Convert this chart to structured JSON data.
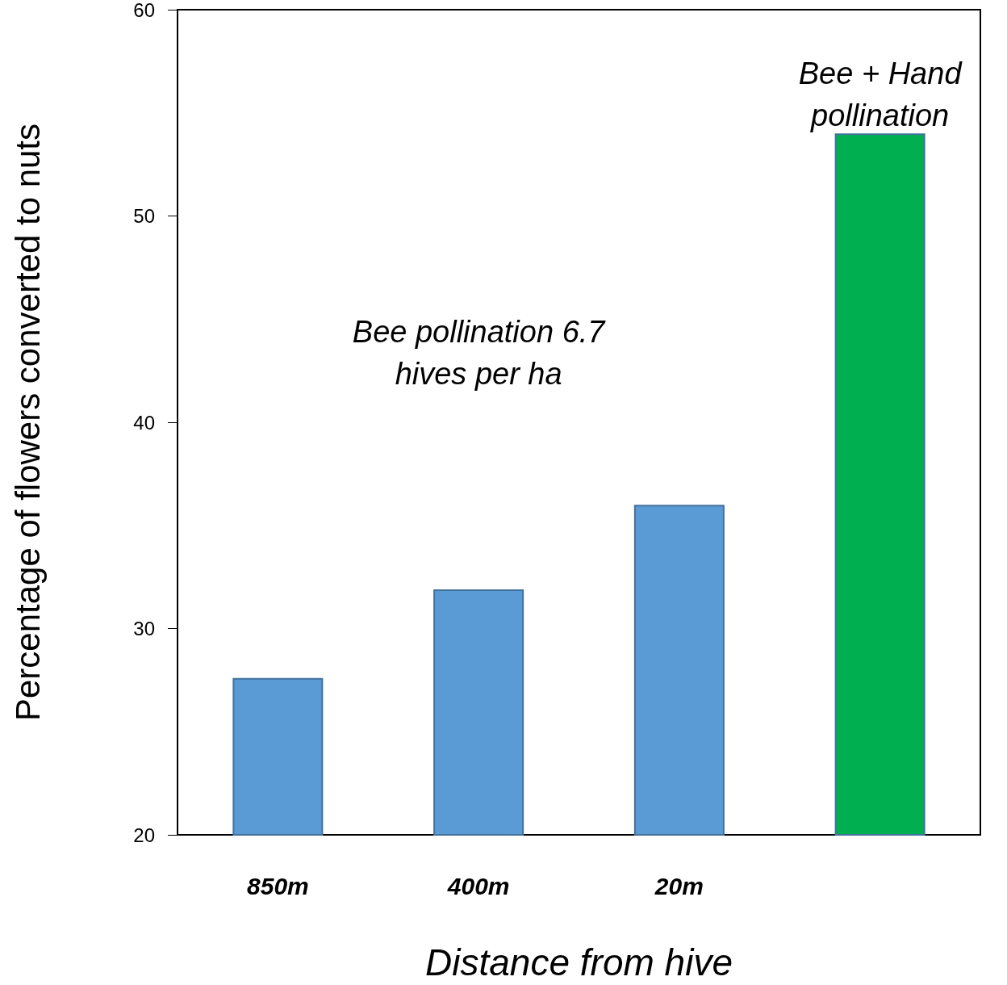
{
  "chart_data": {
    "type": "bar",
    "xlabel": "Distance from hive",
    "ylabel": "Percentage of flowers converted to nuts",
    "categories": [
      "850m",
      "400m",
      "20m",
      null
    ],
    "values": [
      27.6,
      31.9,
      36.0,
      54.0
    ],
    "colors": [
      "#5b9bd5",
      "#5b9bd5",
      "#5b9bd5",
      "#00b050"
    ],
    "ylim": [
      20,
      60
    ],
    "yticks": [
      20,
      30,
      40,
      50,
      60
    ],
    "grid": false,
    "annotations": [
      "Bee pollination 6.7\nhives per ha",
      "Bee + Hand\npollination"
    ]
  }
}
